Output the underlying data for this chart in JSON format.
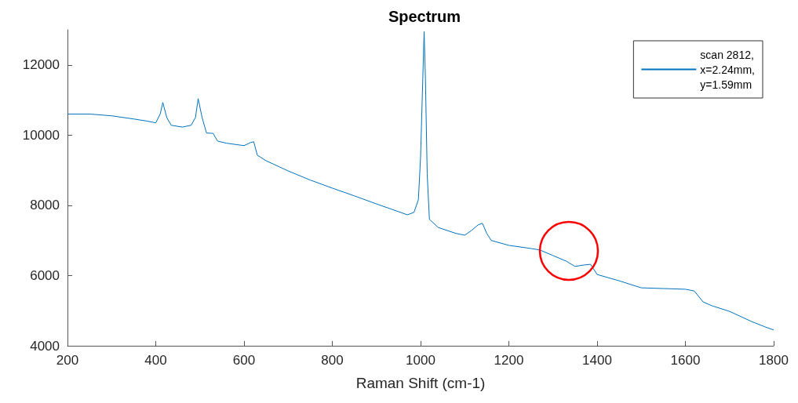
{
  "chart_data": {
    "type": "line",
    "title": "Spectrum",
    "xlabel": "Raman Shift (cm-1)",
    "xlim": [
      200,
      1800
    ],
    "xticks": [
      200,
      400,
      600,
      800,
      1000,
      1200,
      1400,
      1600,
      1800
    ],
    "ylim": [
      4000,
      13000
    ],
    "yticks": [
      4000,
      6000,
      8000,
      10000,
      12000
    ],
    "grid": false,
    "legend": "top right",
    "marker": "none",
    "line_style": "solid",
    "series": [
      {
        "name": "scan 2812,\nx=2.24mm,\ny=1.59mm",
        "color": "#0072bd",
        "x": [
          200,
          250,
          300,
          350,
          380,
          400,
          410,
          416,
          425,
          435,
          460,
          480,
          490,
          496,
          505,
          515,
          530,
          540,
          560,
          600,
          615,
          622,
          630,
          650,
          700,
          750,
          800,
          850,
          900,
          950,
          970,
          985,
          995,
          1000,
          1005,
          1008,
          1011,
          1015,
          1020,
          1040,
          1080,
          1100,
          1115,
          1130,
          1140,
          1150,
          1160,
          1200,
          1250,
          1270,
          1300,
          1330,
          1350,
          1370,
          1385,
          1400,
          1450,
          1500,
          1550,
          1600,
          1620,
          1640,
          1660,
          1700,
          1750,
          1780,
          1800
        ],
        "values": [
          10600,
          10600,
          10550,
          10460,
          10400,
          10350,
          10600,
          10930,
          10500,
          10280,
          10230,
          10280,
          10500,
          11040,
          10500,
          10060,
          10050,
          9830,
          9770,
          9700,
          9790,
          9810,
          9430,
          9270,
          8980,
          8720,
          8490,
          8270,
          8040,
          7820,
          7730,
          7800,
          8160,
          9380,
          11600,
          12950,
          11600,
          8900,
          7600,
          7370,
          7200,
          7150,
          7280,
          7440,
          7490,
          7200,
          7000,
          6860,
          6770,
          6730,
          6570,
          6410,
          6260,
          6300,
          6320,
          6030,
          5850,
          5650,
          5630,
          5610,
          5560,
          5250,
          5140,
          4980,
          4690,
          4540,
          4450
        ]
      }
    ]
  }
}
